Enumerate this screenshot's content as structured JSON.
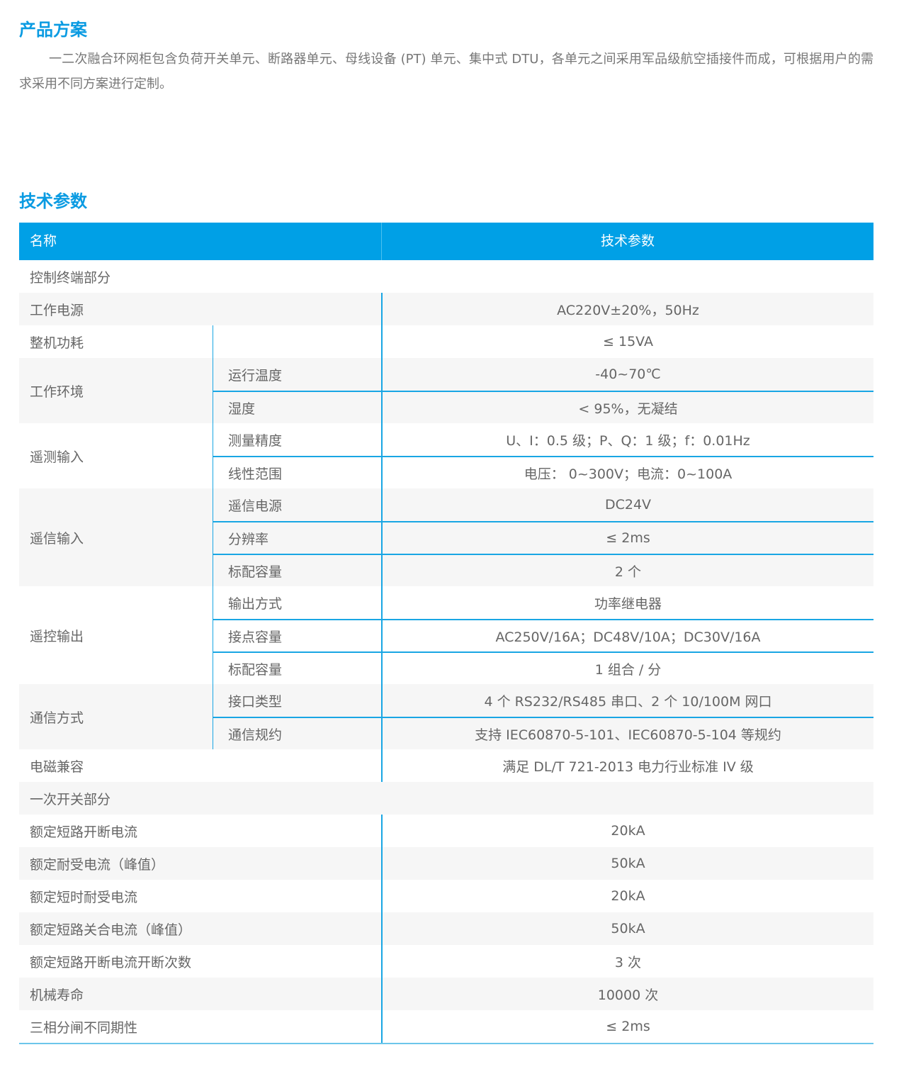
{
  "product": {
    "title": "产品方案",
    "text": "一二次融合环网柜包含负荷开关单元、断路器单元、母线设备 (PT) 单元、集中式 DTU，各单元之间采用军品级航空插接件而成，可根据用户的需求采用不同方案进行定制。"
  },
  "specs": {
    "title": "技术参数",
    "header": {
      "name": "名称",
      "param": "技术参数"
    },
    "groups": [
      {
        "name": "控制终端部分",
        "section": true
      },
      {
        "name": "工作电源",
        "value": "AC220V±20%，50Hz"
      },
      {
        "name": "整机功耗",
        "subs": [
          {
            "label": "",
            "value": "≤ 15VA"
          }
        ]
      },
      {
        "name": "工作环境",
        "subs": [
          {
            "label": "运行温度",
            "value": "-40~70℃"
          },
          {
            "label": "湿度",
            "value": "< 95%，无凝结"
          }
        ]
      },
      {
        "name": "遥测输入",
        "subs": [
          {
            "label": "测量精度",
            "value": "U、I：0.5 级；P、Q：1 级；f：0.01Hz"
          },
          {
            "label": "线性范围",
            "value": "电压： 0~300V；电流：0~100A"
          }
        ]
      },
      {
        "name": "遥信输入",
        "subs": [
          {
            "label": "遥信电源",
            "value": "DC24V"
          },
          {
            "label": "分辨率",
            "value": "≤ 2ms"
          },
          {
            "label": "标配容量",
            "value": "2 个"
          }
        ]
      },
      {
        "name": "遥控输出",
        "subs": [
          {
            "label": "输出方式",
            "value": "功率继电器"
          },
          {
            "label": "接点容量",
            "value": "AC250V/16A；DC48V/10A；DC30V/16A"
          },
          {
            "label": "标配容量",
            "value": "1 组合 / 分"
          }
        ]
      },
      {
        "name": "通信方式",
        "subs": [
          {
            "label": "接口类型",
            "value": "4 个 RS232/RS485 串口、2 个 10/100M 网口"
          },
          {
            "label": "通信规约",
            "value": "支持 IEC60870-5-101、IEC60870-5-104 等规约"
          }
        ]
      },
      {
        "name": "电磁兼容",
        "value": "满足 DL/T 721-2013 电力行业标准 IV 级"
      },
      {
        "name": "一次开关部分",
        "section": true
      },
      {
        "name": "额定短路开断电流",
        "value": "20kA"
      },
      {
        "name": "额定耐受电流（峰值）",
        "value": "50kA"
      },
      {
        "name": "额定短时耐受电流",
        "value": "20kA"
      },
      {
        "name": "额定短路关合电流（峰值）",
        "value": "50kA"
      },
      {
        "name": "额定短路开断电流开断次数",
        "value": "3 次"
      },
      {
        "name": "机械寿命",
        "value": "10000 次"
      },
      {
        "name": "三相分闸不同期性",
        "value": "≤ 2ms"
      }
    ]
  },
  "colors": {
    "accent": "#00a0e6",
    "heading": "#0a9be2",
    "row_alt": "#f6f6f6"
  }
}
